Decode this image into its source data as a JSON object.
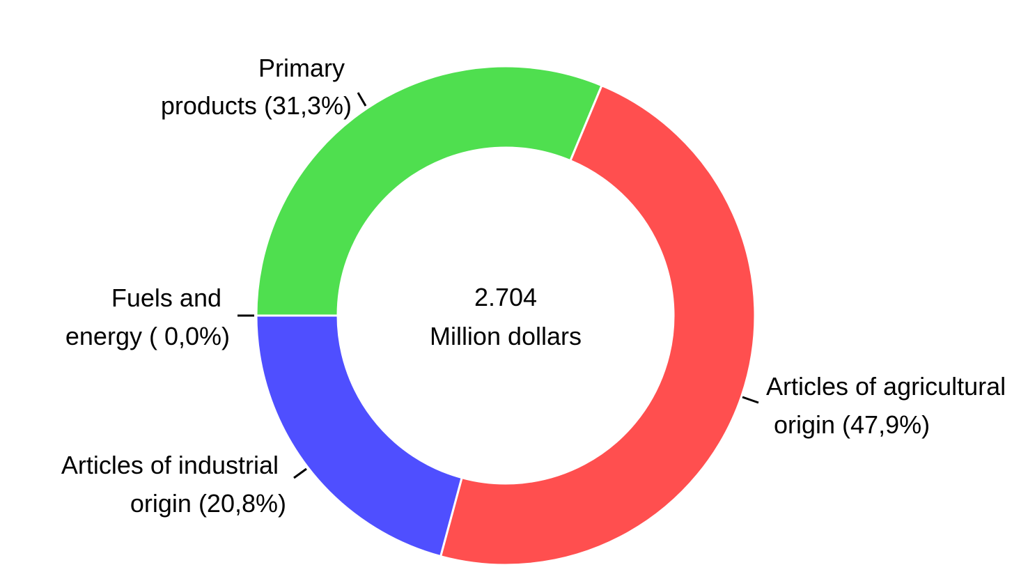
{
  "chart_data": {
    "type": "pie",
    "center_value": "2.704",
    "center_unit": "Million dollars",
    "slices": [
      {
        "label_line1": "Articles of agricultural",
        "label_line2": "origin (47,9%)",
        "value": 47.9,
        "color": "#ff4f4f"
      },
      {
        "label_line1": "Articles of industrial",
        "label_line2": "origin (20,8%)",
        "value": 20.8,
        "color": "#4f4fff"
      },
      {
        "label_line1": "Fuels and",
        "label_line2": "energy ( 0,0%)",
        "value": 0.0,
        "color": "#4f4fff"
      },
      {
        "label_line1": "Primary",
        "label_line2": "products (31,3%)",
        "value": 31.3,
        "color": "#4fdf4f"
      }
    ]
  }
}
